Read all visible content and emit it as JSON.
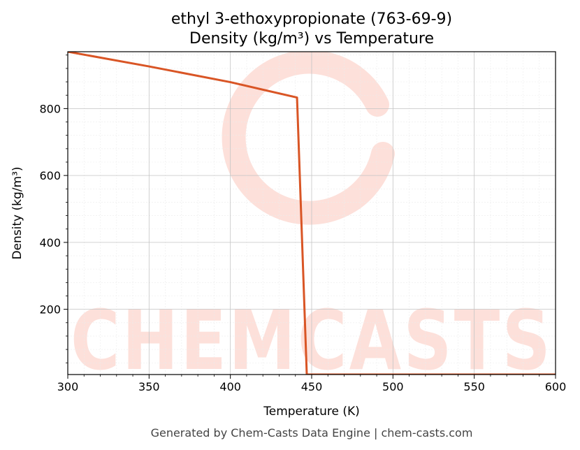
{
  "chart_data": {
    "type": "line",
    "title": "ethyl 3-ethoxypropionate (763-69-9)",
    "subtitle": "Density (kg/m³) vs Temperature",
    "xlabel": "Temperature (K)",
    "ylabel": "Density (kg/m³)",
    "xlim": [
      300,
      600
    ],
    "ylim": [
      5,
      970
    ],
    "x_ticks": [
      300,
      350,
      400,
      450,
      500,
      550,
      600
    ],
    "y_ticks": [
      200,
      400,
      600,
      800
    ],
    "grid": true,
    "legend": "none",
    "series": [
      {
        "color": "#d95525",
        "x": [
          300,
          350,
          400,
          441,
          447,
          450,
          500,
          550,
          600
        ],
        "y": [
          970,
          926,
          879,
          833,
          5,
          5,
          5,
          5,
          5
        ]
      }
    ]
  },
  "watermark": {
    "text": "CHEMCASTS",
    "color": "#fde0da"
  },
  "footer": {
    "text": "Generated by Chem-Casts Data Engine | chem-casts.com"
  }
}
